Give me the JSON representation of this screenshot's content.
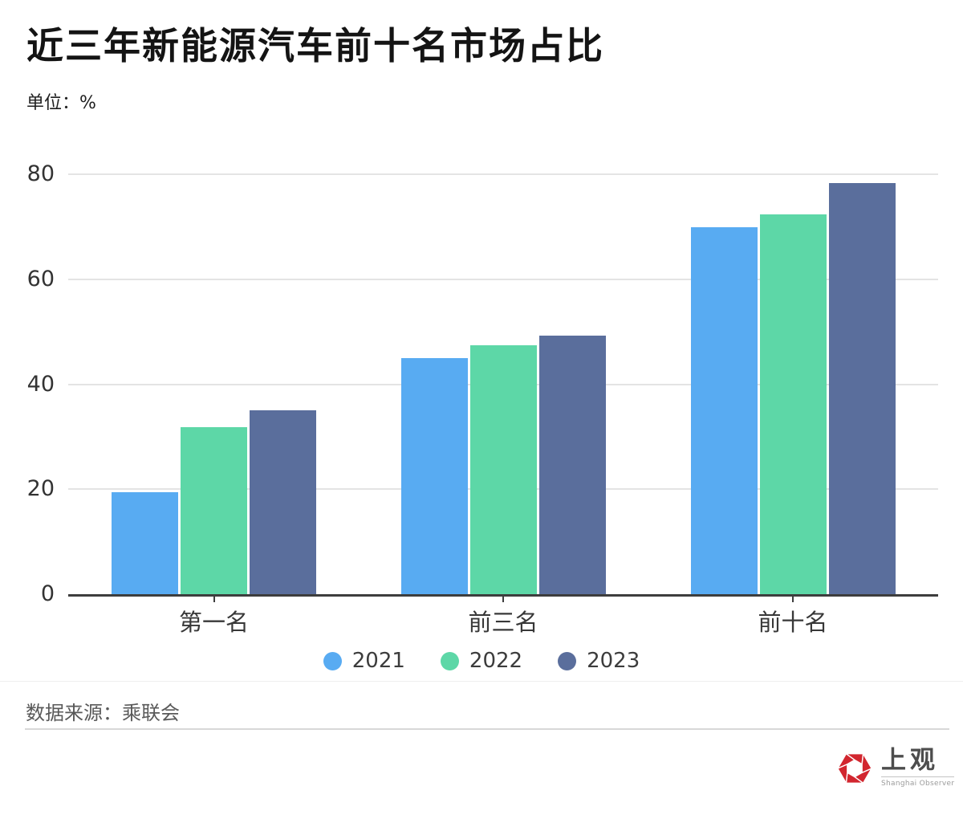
{
  "chart_data": {
    "type": "bar",
    "title": "近三年新能源汽车前十名市场占比",
    "unit_label": "单位：%",
    "categories": [
      "第一名",
      "前三名",
      "前十名"
    ],
    "series": [
      {
        "name": "2021",
        "color": "#58abf2",
        "values": [
          19.5,
          44.9,
          69.9
        ]
      },
      {
        "name": "2022",
        "color": "#5dd7a7",
        "values": [
          31.8,
          47.4,
          72.4
        ]
      },
      {
        "name": "2023",
        "color": "#5a6e9c",
        "values": [
          35.1,
          49.2,
          78.3
        ]
      }
    ],
    "xlabel": "",
    "ylabel": "单位：%",
    "ylim": [
      0,
      80
    ],
    "yticks": [
      0,
      20,
      40,
      60,
      80
    ],
    "grid": true,
    "legend_position": "bottom"
  },
  "footer": {
    "source_label": "数据来源：乘联会",
    "logo": {
      "cn": "上观",
      "en": "Shanghai Observer",
      "accent_color": "#d2262f"
    }
  }
}
